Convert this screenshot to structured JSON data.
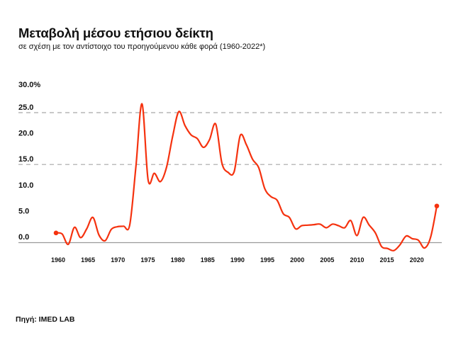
{
  "chart_data": {
    "type": "line",
    "title": "Μεταβολή μέσου ετήσιου δείκτη",
    "subtitle": "σε σχέση με τον αντίστοιχο του προηγούμενου κάθε φορά (1960-2022*)",
    "xlabel": "",
    "ylabel": "",
    "y_unit_suffix": "%",
    "ylim": [
      -2.5,
      30
    ],
    "xlim": [
      1960,
      2022
    ],
    "yticks": [
      {
        "value": 30,
        "label": "30.0%"
      },
      {
        "value": 25,
        "label": "25.0"
      },
      {
        "value": 20,
        "label": "20.0"
      },
      {
        "value": 15,
        "label": "15.0"
      },
      {
        "value": 10,
        "label": "10.0"
      },
      {
        "value": 5,
        "label": "5.0"
      },
      {
        "value": 0,
        "label": "0.0"
      }
    ],
    "dashed_gridlines": [
      25,
      15
    ],
    "baseline": 0,
    "xticks": [
      "1960",
      "1965",
      "1970",
      "1975",
      "1980",
      "1985",
      "1990",
      "1995",
      "2000",
      "2005",
      "2010",
      "2015",
      "2020"
    ],
    "grid": false,
    "legend": "none",
    "series": [
      {
        "name": "Μεταβολή μέσου ετήσιου δείκτη",
        "color": "#f5320f",
        "endpoint_markers": true,
        "x": [
          1960,
          1961,
          1962,
          1963,
          1964,
          1965,
          1966,
          1967,
          1968,
          1969,
          1970,
          1971,
          1972,
          1973,
          1974,
          1975,
          1976,
          1977,
          1978,
          1979,
          1980,
          1981,
          1982,
          1983,
          1984,
          1985,
          1986,
          1987,
          1988,
          1989,
          1990,
          1991,
          1992,
          1993,
          1994,
          1995,
          1996,
          1997,
          1998,
          1999,
          2000,
          2001,
          2002,
          2003,
          2004,
          2005,
          2006,
          2007,
          2008,
          2009,
          2010,
          2011,
          2012,
          2013,
          2014,
          2015,
          2016,
          2017,
          2018,
          2019,
          2020,
          2021,
          2022
        ],
        "values": [
          1.8,
          1.6,
          -0.4,
          2.9,
          0.9,
          2.6,
          4.8,
          1.4,
          0.3,
          2.5,
          3.0,
          3.1,
          3.3,
          14.5,
          26.7,
          12.0,
          13.3,
          11.7,
          14.5,
          20.5,
          25.2,
          22.5,
          20.7,
          20.0,
          18.3,
          19.8,
          22.8,
          15.3,
          13.5,
          13.6,
          20.6,
          18.8,
          16.0,
          14.4,
          10.3,
          8.8,
          8.1,
          5.5,
          4.8,
          2.6,
          3.2,
          3.3,
          3.4,
          3.5,
          2.8,
          3.5,
          3.2,
          2.8,
          4.2,
          1.3,
          4.8,
          3.3,
          1.8,
          -0.8,
          -1.2,
          -1.6,
          -0.5,
          1.2,
          0.7,
          0.4,
          -1.1,
          1.0,
          7.0
        ]
      }
    ]
  },
  "header": {
    "title": "Μεταβολή μέσου ετήσιου δείκτη",
    "subtitle": "σε σχέση με τον αντίστοιχο του προηγούμενου κάθε φορά (1960-2022*)"
  },
  "footer": {
    "source": "Πηγή: IMED LAB"
  }
}
